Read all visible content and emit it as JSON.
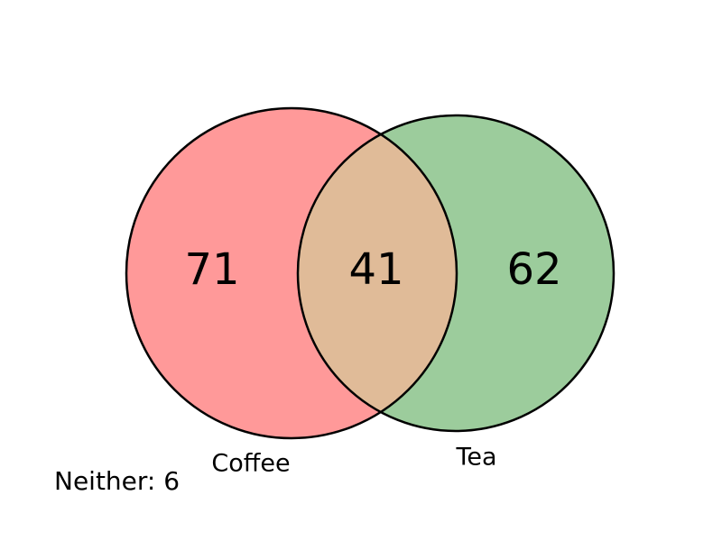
{
  "sets": [
    {
      "label": "Coffee",
      "color": "#ff9999"
    },
    {
      "label": "Tea",
      "color": "#9ccc9c"
    }
  ],
  "regions": {
    "coffee_only": "71",
    "both": "41",
    "tea_only": "62"
  },
  "overlap_color": "#e0bb98",
  "outline_color": "#000000",
  "neither": {
    "text": "Neither: 6",
    "value": 6
  }
}
